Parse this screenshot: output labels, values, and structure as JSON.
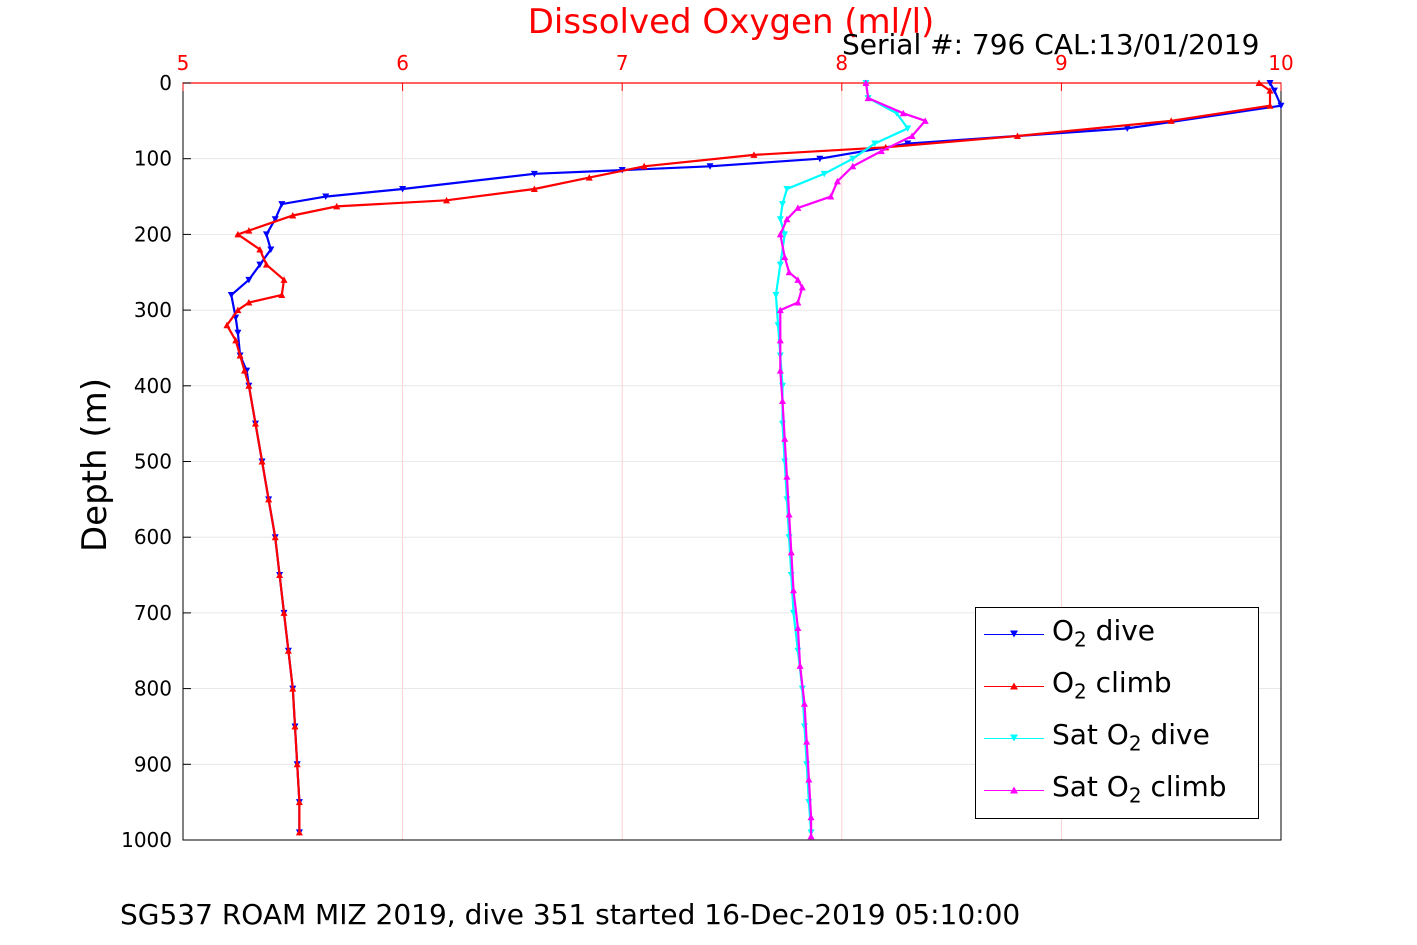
{
  "chart_data": {
    "type": "line",
    "title": "Dissolved Oxygen (ml/l)",
    "subtitle": "Serial #: 796  CAL:13/01/2019",
    "bottom_title": "SG537 ROAM MIZ 2019, dive 351 started 16-Dec-2019 05:10:00",
    "xlabel": "Dissolved Oxygen (ml/l)",
    "ylabel": "Depth (m)",
    "xlim": [
      5,
      10
    ],
    "ylim": [
      0,
      1000
    ],
    "y_reversed": true,
    "x_axis_position": "top",
    "x_ticks": [
      "5",
      "6",
      "7",
      "8",
      "9",
      "10"
    ],
    "y_ticks": [
      "0",
      "100",
      "200",
      "300",
      "400",
      "500",
      "600",
      "700",
      "800",
      "900",
      "1000"
    ],
    "grid": true,
    "legend_position": "bottom-right",
    "series": [
      {
        "name": "O2 dive",
        "color": "#0000ff",
        "marker": "triangle-down",
        "points": [
          [
            9.95,
            0
          ],
          [
            9.97,
            10
          ],
          [
            10.0,
            30
          ],
          [
            9.3,
            60
          ],
          [
            8.3,
            80
          ],
          [
            7.9,
            100
          ],
          [
            7.4,
            110
          ],
          [
            7.0,
            115
          ],
          [
            6.6,
            120
          ],
          [
            6.0,
            140
          ],
          [
            5.65,
            150
          ],
          [
            5.45,
            160
          ],
          [
            5.42,
            180
          ],
          [
            5.38,
            200
          ],
          [
            5.4,
            220
          ],
          [
            5.35,
            240
          ],
          [
            5.3,
            260
          ],
          [
            5.22,
            280
          ],
          [
            5.24,
            310
          ],
          [
            5.25,
            330
          ],
          [
            5.26,
            360
          ],
          [
            5.29,
            380
          ],
          [
            5.3,
            400
          ],
          [
            5.33,
            450
          ],
          [
            5.36,
            500
          ],
          [
            5.39,
            550
          ],
          [
            5.42,
            600
          ],
          [
            5.44,
            650
          ],
          [
            5.46,
            700
          ],
          [
            5.48,
            750
          ],
          [
            5.5,
            800
          ],
          [
            5.51,
            850
          ],
          [
            5.52,
            900
          ],
          [
            5.53,
            950
          ],
          [
            5.53,
            990
          ]
        ]
      },
      {
        "name": "O2 climb",
        "color": "#ff0000",
        "marker": "triangle-up",
        "points": [
          [
            9.9,
            0
          ],
          [
            9.95,
            10
          ],
          [
            9.95,
            30
          ],
          [
            9.5,
            50
          ],
          [
            8.8,
            70
          ],
          [
            8.2,
            85
          ],
          [
            7.6,
            95
          ],
          [
            7.1,
            110
          ],
          [
            6.85,
            125
          ],
          [
            6.6,
            140
          ],
          [
            6.2,
            155
          ],
          [
            5.7,
            163
          ],
          [
            5.5,
            175
          ],
          [
            5.3,
            195
          ],
          [
            5.25,
            200
          ],
          [
            5.35,
            220
          ],
          [
            5.38,
            240
          ],
          [
            5.46,
            260
          ],
          [
            5.45,
            280
          ],
          [
            5.3,
            290
          ],
          [
            5.25,
            300
          ],
          [
            5.2,
            320
          ],
          [
            5.24,
            340
          ],
          [
            5.26,
            360
          ],
          [
            5.28,
            380
          ],
          [
            5.3,
            400
          ],
          [
            5.33,
            450
          ],
          [
            5.36,
            500
          ],
          [
            5.39,
            550
          ],
          [
            5.42,
            600
          ],
          [
            5.44,
            650
          ],
          [
            5.46,
            700
          ],
          [
            5.48,
            750
          ],
          [
            5.5,
            800
          ],
          [
            5.51,
            850
          ],
          [
            5.52,
            900
          ],
          [
            5.53,
            950
          ],
          [
            5.53,
            990
          ]
        ]
      },
      {
        "name": "Sat O2 dive",
        "color": "#00ffff",
        "marker": "triangle-down",
        "points": [
          [
            8.11,
            0
          ],
          [
            8.12,
            20
          ],
          [
            8.25,
            40
          ],
          [
            8.3,
            60
          ],
          [
            8.15,
            80
          ],
          [
            8.05,
            100
          ],
          [
            7.92,
            120
          ],
          [
            7.75,
            140
          ],
          [
            7.73,
            160
          ],
          [
            7.72,
            180
          ],
          [
            7.74,
            200
          ],
          [
            7.72,
            240
          ],
          [
            7.7,
            280
          ],
          [
            7.71,
            320
          ],
          [
            7.72,
            360
          ],
          [
            7.73,
            400
          ],
          [
            7.73,
            450
          ],
          [
            7.74,
            500
          ],
          [
            7.75,
            550
          ],
          [
            7.76,
            600
          ],
          [
            7.77,
            650
          ],
          [
            7.78,
            700
          ],
          [
            7.8,
            750
          ],
          [
            7.82,
            800
          ],
          [
            7.83,
            850
          ],
          [
            7.84,
            900
          ],
          [
            7.85,
            950
          ],
          [
            7.86,
            990
          ]
        ]
      },
      {
        "name": "Sat O2 climb",
        "color": "#ff00ff",
        "marker": "triangle-up",
        "points": [
          [
            8.11,
            0
          ],
          [
            8.12,
            20
          ],
          [
            8.28,
            40
          ],
          [
            8.38,
            50
          ],
          [
            8.32,
            70
          ],
          [
            8.18,
            90
          ],
          [
            8.05,
            110
          ],
          [
            7.98,
            130
          ],
          [
            7.95,
            150
          ],
          [
            7.8,
            165
          ],
          [
            7.75,
            180
          ],
          [
            7.72,
            200
          ],
          [
            7.74,
            230
          ],
          [
            7.76,
            250
          ],
          [
            7.8,
            260
          ],
          [
            7.82,
            270
          ],
          [
            7.8,
            290
          ],
          [
            7.72,
            300
          ],
          [
            7.72,
            340
          ],
          [
            7.72,
            380
          ],
          [
            7.73,
            420
          ],
          [
            7.74,
            470
          ],
          [
            7.75,
            520
          ],
          [
            7.76,
            570
          ],
          [
            7.77,
            620
          ],
          [
            7.78,
            670
          ],
          [
            7.8,
            720
          ],
          [
            7.81,
            770
          ],
          [
            7.83,
            820
          ],
          [
            7.84,
            870
          ],
          [
            7.85,
            920
          ],
          [
            7.86,
            970
          ],
          [
            7.86,
            995
          ]
        ]
      }
    ]
  },
  "legend": {
    "items": [
      {
        "prefix": "O",
        "sub": "2",
        "suffix": " dive"
      },
      {
        "prefix": "O",
        "sub": "2",
        "suffix": " climb"
      },
      {
        "prefix": "Sat O",
        "sub": "2",
        "suffix": " dive"
      },
      {
        "prefix": "Sat O",
        "sub": "2",
        "suffix": " climb"
      }
    ]
  }
}
